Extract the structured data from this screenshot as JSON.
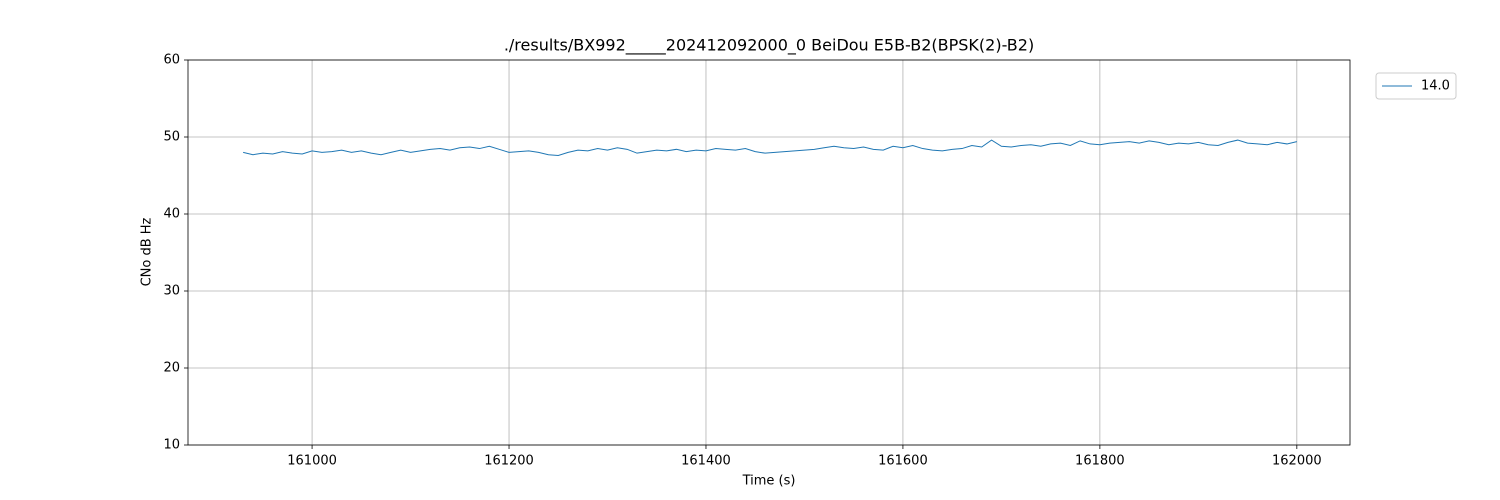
{
  "chart_data": {
    "type": "line",
    "title": "./results/BX992_____202412092000_0 BeiDou E5B-B2(BPSK(2)-B2)",
    "xlabel": "Time (s)",
    "ylabel": "CNo dB Hz",
    "x": [
      160930,
      160940,
      160950,
      160960,
      160970,
      160980,
      160990,
      161000,
      161010,
      161020,
      161030,
      161040,
      161050,
      161060,
      161070,
      161080,
      161090,
      161100,
      161110,
      161120,
      161130,
      161140,
      161150,
      161160,
      161170,
      161180,
      161190,
      161200,
      161210,
      161220,
      161230,
      161240,
      161250,
      161260,
      161270,
      161280,
      161290,
      161300,
      161310,
      161320,
      161330,
      161340,
      161350,
      161360,
      161370,
      161380,
      161390,
      161400,
      161410,
      161420,
      161430,
      161440,
      161450,
      161460,
      161470,
      161480,
      161490,
      161500,
      161510,
      161520,
      161530,
      161540,
      161550,
      161560,
      161570,
      161580,
      161590,
      161600,
      161610,
      161620,
      161630,
      161640,
      161650,
      161660,
      161670,
      161680,
      161690,
      161700,
      161710,
      161720,
      161730,
      161740,
      161750,
      161760,
      161770,
      161780,
      161790,
      161800,
      161810,
      161820,
      161830,
      161840,
      161850,
      161860,
      161870,
      161880,
      161890,
      161900,
      161910,
      161920,
      161930,
      161940,
      161950,
      161960,
      161970,
      161980,
      161990,
      162000
    ],
    "series": [
      {
        "name": "14.0",
        "color": "#1f77b4",
        "values": [
          48.0,
          47.7,
          47.9,
          47.8,
          48.1,
          47.9,
          47.8,
          48.2,
          48.0,
          48.1,
          48.3,
          48.0,
          48.2,
          47.9,
          47.7,
          48.0,
          48.3,
          48.0,
          48.2,
          48.4,
          48.5,
          48.3,
          48.6,
          48.7,
          48.5,
          48.8,
          48.4,
          48.0,
          48.1,
          48.2,
          48.0,
          47.7,
          47.6,
          48.0,
          48.3,
          48.2,
          48.5,
          48.3,
          48.6,
          48.4,
          47.9,
          48.1,
          48.3,
          48.2,
          48.4,
          48.1,
          48.3,
          48.2,
          48.5,
          48.4,
          48.3,
          48.5,
          48.1,
          47.9,
          48.0,
          48.1,
          48.2,
          48.3,
          48.4,
          48.6,
          48.8,
          48.6,
          48.5,
          48.7,
          48.4,
          48.3,
          48.8,
          48.6,
          48.9,
          48.5,
          48.3,
          48.2,
          48.4,
          48.5,
          48.9,
          48.7,
          49.6,
          48.8,
          48.7,
          48.9,
          49.0,
          48.8,
          49.1,
          49.2,
          48.9,
          49.5,
          49.1,
          49.0,
          49.2,
          49.3,
          49.4,
          49.2,
          49.5,
          49.3,
          49.0,
          49.2,
          49.1,
          49.3,
          49.0,
          48.9,
          49.3,
          49.6,
          49.2,
          49.1,
          49.0,
          49.3,
          49.1,
          49.4
        ]
      }
    ],
    "xlim": [
      160874,
      162054
    ],
    "ylim": [
      10,
      60
    ],
    "xticks": [
      161000,
      161200,
      161400,
      161600,
      161800,
      162000
    ],
    "yticks": [
      10,
      20,
      30,
      40,
      50,
      60
    ],
    "grid": true,
    "legend": "upper right outside"
  }
}
